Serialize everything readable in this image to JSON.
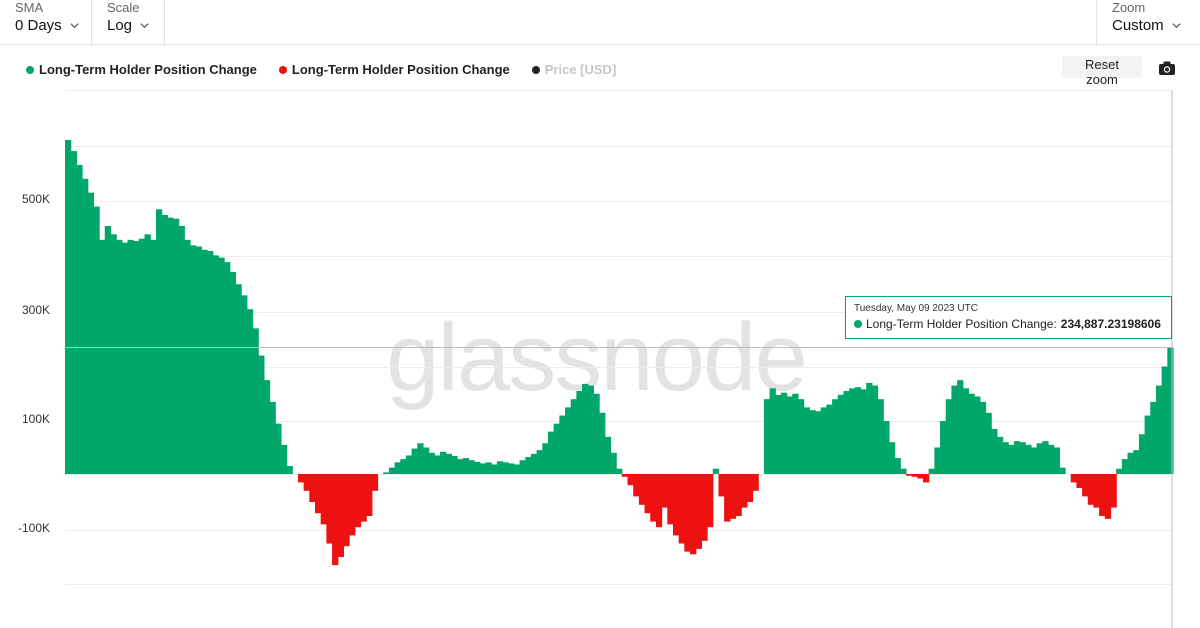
{
  "toolbar": {
    "sma_label": "SMA",
    "sma_value": "0 Days",
    "scale_label": "Scale",
    "scale_value": "Log",
    "zoom_label": "Zoom",
    "zoom_value": "Custom"
  },
  "legend": [
    {
      "label": "Long-Term Holder Position Change",
      "color": "#00a66a"
    },
    {
      "label": "Long-Term Holder Position Change",
      "color": "#ee1111"
    },
    {
      "label": "Price [USD]",
      "color": "#222222"
    }
  ],
  "buttons": {
    "reset_zoom": "Reset zoom",
    "camera_icon": "camera-icon"
  },
  "tooltip": {
    "date": "Tuesday, May 09 2023 UTC",
    "series": "Long-Term Holder Position Change:",
    "value": "234,887.23198606"
  },
  "watermark": "glassnode",
  "chart_data": {
    "type": "bar",
    "scale": "log",
    "y_ticks": [
      {
        "label": "500K",
        "value": 500000
      },
      {
        "label": "300K",
        "value": 300000
      },
      {
        "label": "100K",
        "value": 100000
      },
      {
        "label": "-100K",
        "value": -100000
      }
    ],
    "series": [
      {
        "label": "Long-Term Holder Position Change",
        "color": "#00a66a",
        "color_negative": "#ee1111",
        "values": [
          610000,
          590000,
          565000,
          540000,
          515000,
          490000,
          430000,
          455000,
          440000,
          430000,
          425000,
          430000,
          428000,
          432000,
          440000,
          430000,
          485000,
          475000,
          470000,
          468000,
          455000,
          430000,
          420000,
          418000,
          412000,
          410000,
          402000,
          398000,
          390000,
          372000,
          350000,
          330000,
          305000,
          270000,
          220000,
          175000,
          135000,
          95000,
          55000,
          15000,
          0,
          -15000,
          -30000,
          -50000,
          -70000,
          -90000,
          -125000,
          -165000,
          -150000,
          -130000,
          -110000,
          -95000,
          -85000,
          -75000,
          -30000,
          0,
          3000,
          12000,
          22000,
          28000,
          35000,
          48000,
          58000,
          50000,
          40000,
          35000,
          42000,
          38000,
          34000,
          28000,
          30000,
          26000,
          23000,
          20000,
          22000,
          18000,
          24000,
          22000,
          20000,
          18000,
          26000,
          32000,
          38000,
          45000,
          58000,
          80000,
          95000,
          110000,
          125000,
          140000,
          155000,
          168000,
          165000,
          150000,
          115000,
          70000,
          40000,
          10000,
          -5000,
          -20000,
          -40000,
          -55000,
          -70000,
          -85000,
          -95000,
          -60000,
          -90000,
          -110000,
          -125000,
          -140000,
          -145000,
          -135000,
          -120000,
          -95000,
          10000,
          -40000,
          -85000,
          -80000,
          -75000,
          -60000,
          -50000,
          -30000,
          0,
          140000,
          160000,
          148000,
          152000,
          145000,
          150000,
          140000,
          125000,
          120000,
          118000,
          125000,
          130000,
          140000,
          148000,
          155000,
          160000,
          162000,
          158000,
          170000,
          165000,
          140000,
          100000,
          60000,
          30000,
          10000,
          -3000,
          -5000,
          -8000,
          -15000,
          10000,
          50000,
          100000,
          140000,
          165000,
          175000,
          160000,
          150000,
          145000,
          135000,
          115000,
          85000,
          70000,
          60000,
          55000,
          62000,
          60000,
          55000,
          50000,
          58000,
          62000,
          55000,
          50000,
          12000,
          0,
          -15000,
          -25000,
          -40000,
          -55000,
          -60000,
          -75000,
          -80000,
          -60000,
          10000,
          28000,
          40000,
          45000,
          75000,
          110000,
          135000,
          165000,
          200000,
          234887
        ]
      }
    ]
  }
}
